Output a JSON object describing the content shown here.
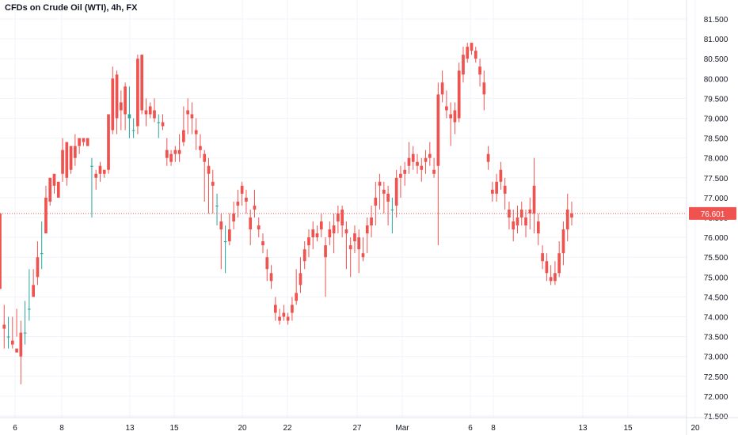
{
  "header": {
    "title": "CFDs on Crude Oil (WTI), 4h, FX"
  },
  "price_scale": {
    "ticks": [
      "81.500",
      "81.000",
      "80.500",
      "80.000",
      "79.500",
      "79.000",
      "78.500",
      "78.000",
      "77.500",
      "77.000",
      "76.500",
      "76.000",
      "75.500",
      "75.000",
      "74.500",
      "74.000",
      "73.500",
      "73.000",
      "72.500",
      "72.000",
      "71.500"
    ]
  },
  "time_scale": {
    "labels": [
      "6",
      "8",
      "13",
      "15",
      "20",
      "22",
      "27",
      "Mar",
      "6",
      "8",
      "13",
      "15",
      "20"
    ]
  },
  "last_price": {
    "label": "76.601",
    "value": 76.601
  },
  "colors": {
    "up": "#26a69a",
    "down": "#ef5350",
    "grid": "#f0f3fa",
    "text": "#131722",
    "axis": "#e0e3eb"
  },
  "chart_data": {
    "type": "candlestick",
    "title": "CFDs on Crude Oil (WTI), 4h, FX",
    "ylim": [
      71.3,
      81.75
    ],
    "grid": true,
    "candles": [
      [
        76.6,
        76.0,
        74.7,
        76.6
      ],
      [
        73.8,
        74.3,
        73.7,
        73.2
      ],
      [
        73.5,
        74.0,
        73.5,
        73.2
      ],
      [
        73.4,
        74.0,
        73.3,
        73.2
      ],
      [
        73.2,
        74.2,
        73.1,
        73.5
      ],
      [
        73.6,
        73.9,
        73.0,
        72.3
      ],
      [
        73.6,
        74.4,
        73.6,
        73.3
      ],
      [
        74.2,
        75.2,
        74.2,
        73.9
      ],
      [
        74.8,
        75.2,
        74.5,
        74.6
      ],
      [
        75.5,
        75.9,
        75.0,
        74.8
      ],
      [
        75.6,
        76.4,
        75.6,
        75.2
      ],
      [
        77.0,
        77.3,
        76.1,
        76.1
      ],
      [
        77.5,
        77.5,
        76.9,
        76.8
      ],
      [
        77.6,
        77.6,
        77.3,
        77.1
      ],
      [
        77.4,
        77.4,
        77.0,
        77.0
      ],
      [
        78.2,
        78.5,
        77.6,
        77.4
      ],
      [
        78.4,
        78.4,
        77.5,
        77.3
      ],
      [
        78.3,
        78.3,
        77.7,
        77.6
      ],
      [
        78.3,
        78.6,
        78.0,
        77.8
      ],
      [
        78.5,
        78.5,
        78.3,
        78.1
      ],
      [
        78.5,
        78.5,
        78.4,
        78.3
      ],
      [
        78.5,
        78.5,
        78.3,
        78.3
      ],
      [
        77.8,
        78.0,
        77.8,
        76.5
      ],
      [
        77.6,
        77.7,
        77.5,
        77.2
      ],
      [
        77.8,
        77.9,
        77.6,
        77.4
      ],
      [
        77.7,
        77.7,
        77.6,
        77.5
      ],
      [
        79.1,
        79.1,
        77.7,
        77.6
      ],
      [
        80.0,
        80.3,
        78.7,
        78.6
      ],
      [
        80.1,
        80.2,
        79.0,
        78.6
      ],
      [
        79.4,
        79.7,
        79.2,
        78.7
      ],
      [
        79.8,
        79.9,
        79.1,
        78.7
      ],
      [
        79.0,
        79.8,
        79.1,
        78.5
      ],
      [
        78.7,
        79.0,
        78.7,
        78.5
      ],
      [
        80.5,
        80.6,
        78.8,
        78.6
      ],
      [
        80.6,
        80.6,
        79.2,
        79.1
      ],
      [
        79.2,
        79.5,
        79.1,
        78.8
      ],
      [
        79.3,
        79.4,
        79.1,
        79.0
      ],
      [
        79.2,
        79.5,
        79.0,
        78.9
      ],
      [
        78.9,
        79.1,
        78.9,
        78.5
      ],
      [
        78.9,
        79.1,
        78.8,
        78.7
      ],
      [
        78.2,
        78.5,
        78.0,
        77.8
      ],
      [
        78.1,
        78.2,
        77.9,
        77.8
      ],
      [
        78.2,
        78.3,
        78.1,
        77.9
      ],
      [
        78.2,
        78.6,
        78.1,
        77.9
      ],
      [
        78.7,
        79.3,
        78.4,
        78.3
      ],
      [
        79.2,
        79.5,
        79.1,
        78.6
      ],
      [
        79.1,
        79.4,
        79.0,
        78.6
      ],
      [
        78.7,
        79.0,
        78.6,
        78.2
      ],
      [
        78.3,
        78.6,
        78.2,
        78.0
      ],
      [
        78.1,
        78.2,
        77.9,
        76.9
      ],
      [
        77.8,
        78.0,
        77.6,
        76.6
      ],
      [
        77.4,
        77.7,
        77.3,
        76.6
      ],
      [
        76.8,
        77.1,
        76.8,
        76.3
      ],
      [
        76.4,
        76.6,
        76.2,
        75.2
      ],
      [
        75.9,
        76.3,
        75.9,
        75.1
      ],
      [
        76.2,
        76.6,
        75.9,
        75.8
      ],
      [
        76.6,
        76.9,
        76.4,
        76.2
      ],
      [
        76.9,
        77.2,
        76.8,
        76.5
      ],
      [
        77.3,
        77.4,
        77.1,
        76.8
      ],
      [
        77.0,
        77.2,
        76.9,
        76.6
      ],
      [
        76.5,
        76.7,
        76.2,
        75.8
      ],
      [
        76.8,
        77.2,
        76.7,
        76.5
      ],
      [
        76.3,
        76.5,
        76.2,
        76.0
      ],
      [
        75.9,
        76.1,
        75.8,
        75.6
      ],
      [
        75.5,
        75.7,
        75.2,
        74.9
      ],
      [
        75.1,
        75.3,
        74.9,
        74.7
      ],
      [
        74.3,
        74.5,
        74.1,
        73.9
      ],
      [
        74.0,
        74.2,
        73.9,
        73.8
      ],
      [
        74.1,
        74.3,
        74.0,
        73.9
      ],
      [
        74.0,
        74.1,
        73.9,
        73.8
      ],
      [
        74.3,
        74.5,
        74.1,
        73.9
      ],
      [
        74.6,
        75.2,
        74.4,
        74.3
      ],
      [
        75.1,
        75.5,
        74.8,
        74.6
      ],
      [
        75.7,
        75.9,
        75.4,
        75.2
      ],
      [
        76.0,
        76.2,
        75.8,
        75.5
      ],
      [
        76.2,
        76.4,
        76.0,
        75.7
      ],
      [
        76.1,
        76.3,
        76.0,
        75.9
      ],
      [
        76.4,
        76.6,
        76.2,
        76.0
      ],
      [
        75.8,
        76.0,
        75.5,
        74.5
      ],
      [
        76.2,
        76.4,
        76.0,
        75.8
      ],
      [
        76.3,
        76.6,
        76.1,
        75.6
      ],
      [
        76.6,
        76.8,
        76.4,
        76.1
      ],
      [
        76.7,
        76.8,
        76.3,
        76.0
      ],
      [
        76.2,
        76.4,
        76.1,
        75.2
      ],
      [
        75.8,
        76.0,
        75.7,
        75.0
      ],
      [
        76.1,
        76.3,
        75.9,
        75.6
      ],
      [
        76.0,
        76.2,
        75.7,
        75.1
      ],
      [
        75.6,
        76.0,
        75.5,
        75.4
      ],
      [
        76.3,
        76.5,
        76.1,
        75.6
      ],
      [
        76.5,
        76.8,
        76.3,
        76.0
      ],
      [
        77.0,
        77.4,
        76.8,
        76.3
      ],
      [
        77.4,
        77.6,
        77.3,
        76.7
      ],
      [
        77.2,
        77.4,
        77.1,
        76.6
      ],
      [
        77.1,
        77.3,
        76.9,
        76.3
      ],
      [
        76.7,
        77.0,
        76.7,
        76.1
      ],
      [
        77.5,
        77.7,
        76.8,
        76.5
      ],
      [
        77.6,
        77.8,
        77.5,
        77.0
      ],
      [
        77.7,
        77.9,
        77.6,
        77.3
      ],
      [
        78.0,
        78.4,
        77.8,
        77.6
      ],
      [
        78.1,
        78.3,
        77.9,
        77.7
      ],
      [
        77.9,
        78.1,
        77.8,
        77.6
      ],
      [
        77.8,
        78.0,
        77.7,
        77.4
      ],
      [
        78.0,
        78.2,
        77.9,
        77.6
      ],
      [
        78.1,
        78.4,
        78.0,
        77.8
      ],
      [
        77.7,
        78.0,
        77.6,
        77.5
      ],
      [
        79.6,
        79.9,
        77.8,
        75.8
      ],
      [
        79.9,
        80.2,
        79.6,
        79.4
      ],
      [
        79.3,
        79.7,
        79.2,
        79.0
      ],
      [
        79.1,
        79.4,
        79.0,
        78.3
      ],
      [
        79.2,
        79.4,
        78.9,
        78.6
      ],
      [
        80.2,
        80.4,
        79.0,
        78.9
      ],
      [
        80.6,
        80.8,
        80.1,
        79.9
      ],
      [
        80.8,
        80.9,
        80.5,
        80.4
      ],
      [
        80.9,
        80.9,
        80.7,
        80.6
      ],
      [
        80.7,
        80.8,
        80.5,
        80.4
      ],
      [
        80.3,
        80.5,
        80.1,
        79.8
      ],
      [
        79.9,
        80.2,
        79.6,
        79.2
      ],
      [
        78.1,
        78.3,
        77.9,
        77.7
      ],
      [
        77.2,
        77.4,
        77.1,
        76.9
      ],
      [
        77.4,
        77.6,
        77.1,
        76.9
      ],
      [
        77.7,
        77.9,
        77.4,
        77.2
      ],
      [
        77.3,
        77.5,
        77.1,
        76.7
      ],
      [
        76.7,
        76.9,
        76.5,
        76.2
      ],
      [
        76.4,
        76.7,
        76.2,
        75.9
      ],
      [
        76.5,
        76.8,
        76.3,
        76.1
      ],
      [
        76.7,
        76.9,
        76.5,
        76.3
      ],
      [
        76.5,
        76.7,
        76.3,
        76.0
      ],
      [
        76.7,
        77.0,
        76.6,
        76.2
      ],
      [
        77.3,
        78.0,
        76.6,
        76.1
      ],
      [
        76.4,
        76.6,
        76.1,
        75.8
      ],
      [
        75.6,
        75.8,
        75.4,
        75.2
      ],
      [
        75.4,
        75.6,
        75.1,
        74.9
      ],
      [
        75.0,
        75.3,
        74.9,
        74.8
      ],
      [
        75.1,
        75.4,
        74.9,
        74.8
      ],
      [
        75.6,
        75.9,
        75.1,
        75.0
      ],
      [
        76.2,
        76.4,
        75.6,
        75.3
      ],
      [
        76.7,
        77.1,
        76.2,
        75.9
      ],
      [
        76.6,
        76.9,
        76.5,
        76.3
      ]
    ]
  }
}
